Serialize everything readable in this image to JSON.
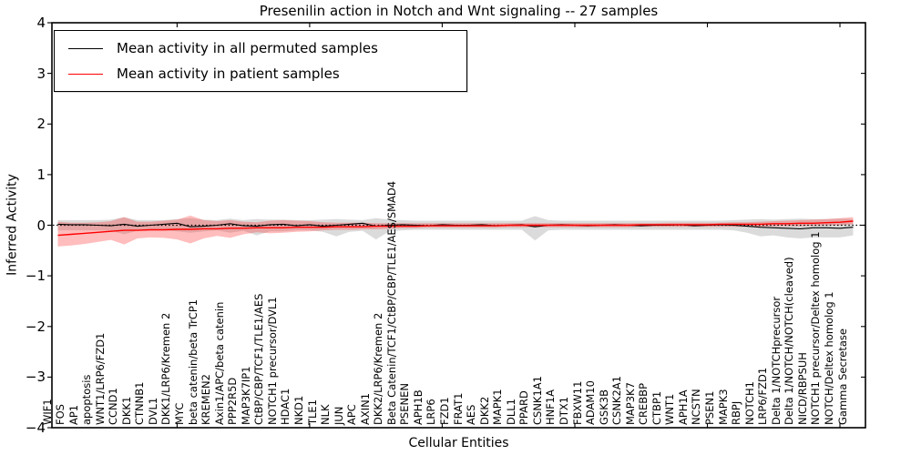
{
  "figure": {
    "title": "Presenilin action in Notch and Wnt signaling -- 27 samples",
    "xlabel": "Cellular Entities",
    "ylabel": "Inferred Activity",
    "sample_count": 27
  },
  "legend": {
    "items": [
      {
        "label": "Mean activity in all permuted samples",
        "color": "#000000"
      },
      {
        "label": "Mean activity in patient samples",
        "color": "#ff0000"
      }
    ]
  },
  "chart_data": {
    "type": "line",
    "title": "Presenilin action in Notch and Wnt signaling -- 27 samples",
    "xlabel": "Cellular Entities",
    "ylabel": "Inferred Activity",
    "ylim": [
      -4,
      4
    ],
    "yticks": [
      4,
      3,
      2,
      1,
      0,
      -1,
      -2,
      -3,
      -4
    ],
    "x_major_tick_indices": [
      9,
      19,
      29,
      39,
      49,
      59
    ],
    "grid": false,
    "legend_position": "upper left",
    "zero_line": {
      "style": "dotted",
      "color": "#000000",
      "y": 0
    },
    "categories": [
      "WIF1",
      "FOS",
      "AP1",
      "apoptosis",
      "WNT1/LRP6/FZD1",
      "CCND1",
      "DKK1",
      "CTNNB1",
      "DVL1",
      "DKK1/LRP6/Kremen 2",
      "MYC",
      "beta catenin/beta TrCP1",
      "KREMEN2",
      "Axin1/APC/beta catenin",
      "PPP2R5D",
      "MAP3K7IP1",
      "CtBP/CBP/TCF1/TLE1/AES",
      "NOTCH1 precursor/DVL1",
      "HDAC1",
      "NKD1",
      "TLE1",
      "NLK",
      "JUN",
      "APC",
      "AXIN1",
      "DKK2/LRP6/Kremen 2",
      "Beta Catenin/TCF1/CtBP/CBP/TLE1/AES/SMAD4",
      "PSENEN",
      "APH1B",
      "LRP6",
      "FZD1",
      "FRAT1",
      "AES",
      "DKK2",
      "MAPK1",
      "DLL1",
      "PPARD",
      "CSNK1A1",
      "HNF1A",
      "DTX1",
      "FBXW11",
      "ADAM10",
      "GSK3B",
      "CSNK2A1",
      "MAP3K7",
      "CREBBP",
      "CTBP1",
      "WNT1",
      "APH1A",
      "NCSTN",
      "PSEN1",
      "MAPK3",
      "RBPJ",
      "NOTCH1",
      "LRP6/FZD1",
      "Delta 1/NOTCHprecursor",
      "Delta 1/NOTCH/NOTCH(cleaved)",
      "NICD/RBPSUH",
      "NOTCH1 precursor/Deltex homolog 1",
      "NOTCH/Deltex homolog 1",
      "Gamma Secretase"
    ],
    "series": [
      {
        "name": "Mean activity in all permuted samples",
        "color": "#000000",
        "values": [
          0.02,
          0.01,
          0.01,
          0.0,
          -0.01,
          0.02,
          -0.02,
          0.0,
          0.02,
          0.04,
          -0.03,
          -0.02,
          0.0,
          0.03,
          -0.01,
          -0.02,
          0.01,
          0.02,
          -0.01,
          0.01,
          -0.02,
          0.0,
          0.02,
          0.04,
          -0.02,
          0.0,
          0.01,
          0.0,
          -0.01,
          0.01,
          0.0,
          0.0,
          0.01,
          -0.01,
          0.0,
          0.01,
          -0.03,
          0.0,
          0.01,
          0.0,
          -0.01,
          0.0,
          0.01,
          0.0,
          -0.01,
          0.0,
          0.0,
          0.01,
          -0.01,
          0.0,
          0.01,
          0.0,
          -0.02,
          -0.04,
          -0.05,
          -0.06,
          -0.07,
          -0.05,
          -0.05,
          -0.06,
          -0.04
        ]
      },
      {
        "name": "Mean activity in patient samples",
        "color": "#ff0000",
        "values": [
          -0.2,
          -0.18,
          -0.16,
          -0.14,
          -0.12,
          -0.1,
          -0.1,
          -0.09,
          -0.09,
          -0.08,
          -0.08,
          -0.07,
          -0.07,
          -0.06,
          -0.06,
          -0.05,
          -0.05,
          -0.05,
          -0.04,
          -0.04,
          -0.04,
          -0.03,
          -0.03,
          -0.03,
          -0.02,
          -0.02,
          -0.02,
          -0.02,
          -0.01,
          -0.01,
          -0.01,
          -0.01,
          -0.01,
          -0.01,
          0.0,
          0.0,
          0.0,
          0.0,
          0.0,
          0.0,
          0.0,
          0.0,
          0.0,
          0.0,
          0.01,
          0.01,
          0.01,
          0.01,
          0.01,
          0.01,
          0.02,
          0.02,
          0.02,
          0.02,
          0.03,
          0.03,
          0.04,
          0.04,
          0.05,
          0.06,
          0.08
        ]
      }
    ],
    "bands": [
      {
        "name": "permuted-range",
        "color": "#999999",
        "opacity": 0.35,
        "upper": [
          0.1,
          0.1,
          0.1,
          0.1,
          0.11,
          0.16,
          0.1,
          0.1,
          0.1,
          0.12,
          0.14,
          0.11,
          0.1,
          0.13,
          0.1,
          0.12,
          0.11,
          0.11,
          0.1,
          0.1,
          0.11,
          0.12,
          0.11,
          0.1,
          0.14,
          0.11,
          0.1,
          0.09,
          0.09,
          0.09,
          0.09,
          0.09,
          0.09,
          0.09,
          0.09,
          0.09,
          0.18,
          0.1,
          0.09,
          0.09,
          0.09,
          0.09,
          0.09,
          0.09,
          0.09,
          0.09,
          0.09,
          0.09,
          0.09,
          0.09,
          0.09,
          0.1,
          0.11,
          0.12,
          0.11,
          0.12,
          0.13,
          0.12,
          0.12,
          0.13,
          0.12
        ],
        "lower": [
          -0.1,
          -0.1,
          -0.1,
          -0.1,
          -0.11,
          -0.18,
          -0.11,
          -0.1,
          -0.1,
          -0.12,
          -0.15,
          -0.12,
          -0.1,
          -0.15,
          -0.11,
          -0.2,
          -0.12,
          -0.12,
          -0.1,
          -0.1,
          -0.13,
          -0.22,
          -0.13,
          -0.11,
          -0.28,
          -0.12,
          -0.1,
          -0.09,
          -0.09,
          -0.09,
          -0.09,
          -0.09,
          -0.09,
          -0.09,
          -0.09,
          -0.09,
          -0.3,
          -0.1,
          -0.09,
          -0.09,
          -0.09,
          -0.09,
          -0.09,
          -0.09,
          -0.09,
          -0.09,
          -0.09,
          -0.09,
          -0.09,
          -0.09,
          -0.09,
          -0.1,
          -0.15,
          -0.22,
          -0.2,
          -0.24,
          -0.26,
          -0.24,
          -0.24,
          -0.24,
          -0.2
        ]
      },
      {
        "name": "patient-range",
        "color": "#ff3333",
        "opacity": 0.32,
        "upper": [
          0.07,
          0.05,
          0.05,
          0.06,
          0.08,
          0.16,
          0.07,
          0.07,
          0.09,
          0.11,
          0.19,
          0.1,
          0.08,
          0.1,
          0.07,
          0.06,
          0.09,
          0.1,
          0.09,
          0.08,
          0.06,
          0.05,
          0.05,
          0.05,
          0.04,
          0.04,
          0.04,
          0.04,
          0.04,
          0.04,
          0.04,
          0.04,
          0.04,
          0.04,
          0.04,
          0.04,
          0.04,
          0.04,
          0.04,
          0.04,
          0.04,
          0.04,
          0.04,
          0.04,
          0.04,
          0.04,
          0.05,
          0.05,
          0.05,
          0.05,
          0.05,
          0.06,
          0.06,
          0.07,
          0.08,
          0.09,
          0.1,
          0.11,
          0.12,
          0.14,
          0.16
        ],
        "lower": [
          -0.42,
          -0.4,
          -0.37,
          -0.33,
          -0.29,
          -0.38,
          -0.26,
          -0.24,
          -0.25,
          -0.28,
          -0.36,
          -0.26,
          -0.21,
          -0.25,
          -0.18,
          -0.14,
          -0.16,
          -0.15,
          -0.13,
          -0.12,
          -0.1,
          -0.09,
          -0.09,
          -0.08,
          -0.08,
          -0.07,
          -0.06,
          -0.06,
          -0.05,
          -0.05,
          -0.05,
          -0.05,
          -0.05,
          -0.05,
          -0.04,
          -0.04,
          -0.04,
          -0.04,
          -0.04,
          -0.04,
          -0.04,
          -0.04,
          -0.04,
          -0.04,
          -0.03,
          -0.03,
          -0.03,
          -0.03,
          -0.03,
          -0.03,
          -0.03,
          -0.03,
          -0.03,
          -0.03,
          -0.02,
          -0.02,
          -0.02,
          -0.01,
          0.0,
          0.0,
          0.02
        ]
      }
    ]
  }
}
